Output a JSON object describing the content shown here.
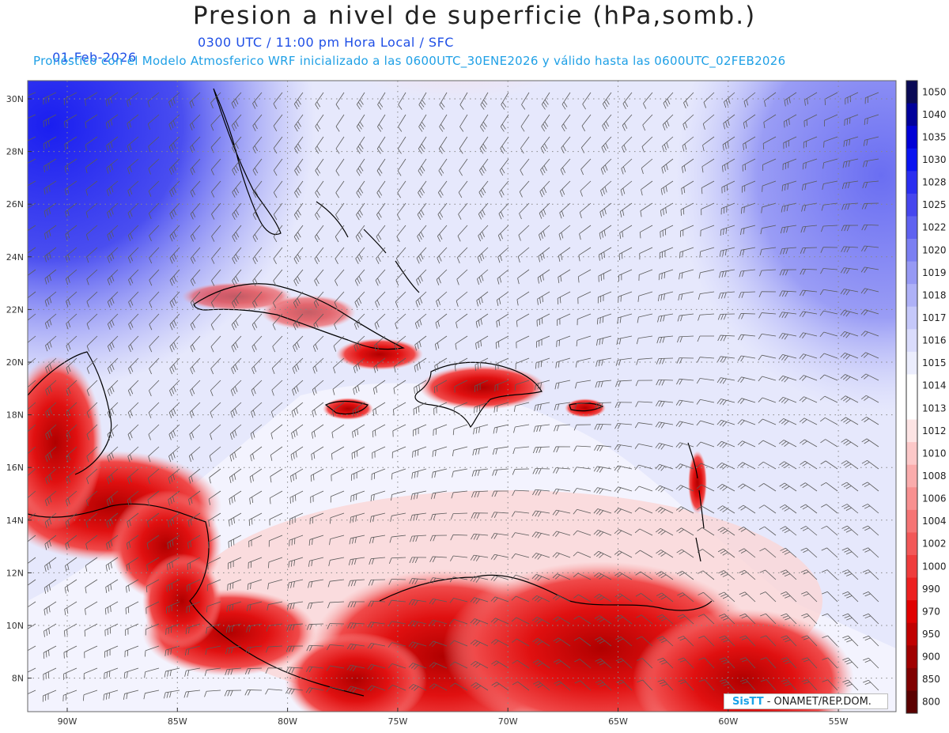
{
  "header": {
    "title": "Presion a nivel de superficie (hPa,somb.)",
    "date": "01-Feb-2026",
    "time_info": "0300 UTC / 11:00 pm Hora Local / SFC",
    "forecast_info": "Pronóstico con el Modelo Atmosferico WRF inicializado a las 0600UTC_30ENE2026 y válido hasta las  0600UTC_02FEB2026"
  },
  "map": {
    "lat_labels": [
      "30N",
      "28N",
      "26N",
      "24N",
      "22N",
      "20N",
      "18N",
      "16N",
      "14N",
      "12N",
      "10N",
      "8N"
    ],
    "lon_labels": [
      "90W",
      "85W",
      "80W",
      "75W",
      "70W",
      "65W",
      "60W",
      "55W"
    ],
    "land_outline_color": "#000000",
    "wind_barb_color": "#555555"
  },
  "colorbar": {
    "levels": [
      "1050",
      "1040",
      "1035",
      "1030",
      "1028",
      "1025",
      "1022",
      "1020",
      "1019",
      "1018",
      "1017",
      "1016",
      "1015",
      "1014",
      "1013",
      "1012",
      "1010",
      "1008",
      "1006",
      "1004",
      "1002",
      "1000",
      "990",
      "970",
      "950",
      "900",
      "850",
      "800"
    ],
    "colors": [
      "#0a0a55",
      "#00009a",
      "#0000d6",
      "#0a14f0",
      "#2a2ef0",
      "#4646ee",
      "#5f62f0",
      "#7b7ff2",
      "#9699f4",
      "#aeb1f7",
      "#c5c8fa",
      "#dadcfc",
      "#ebedfd",
      "#ffffff",
      "#ffffff",
      "#fde4e4",
      "#fcc8c8",
      "#faacac",
      "#f89090",
      "#f57474",
      "#f25858",
      "#ef3c3c",
      "#ec2020",
      "#e00000",
      "#c00000",
      "#a00000",
      "#800000",
      "#5a0000"
    ]
  },
  "credit": {
    "logo": "SisTT",
    "text": "- ONAMET/REP.DOM."
  }
}
